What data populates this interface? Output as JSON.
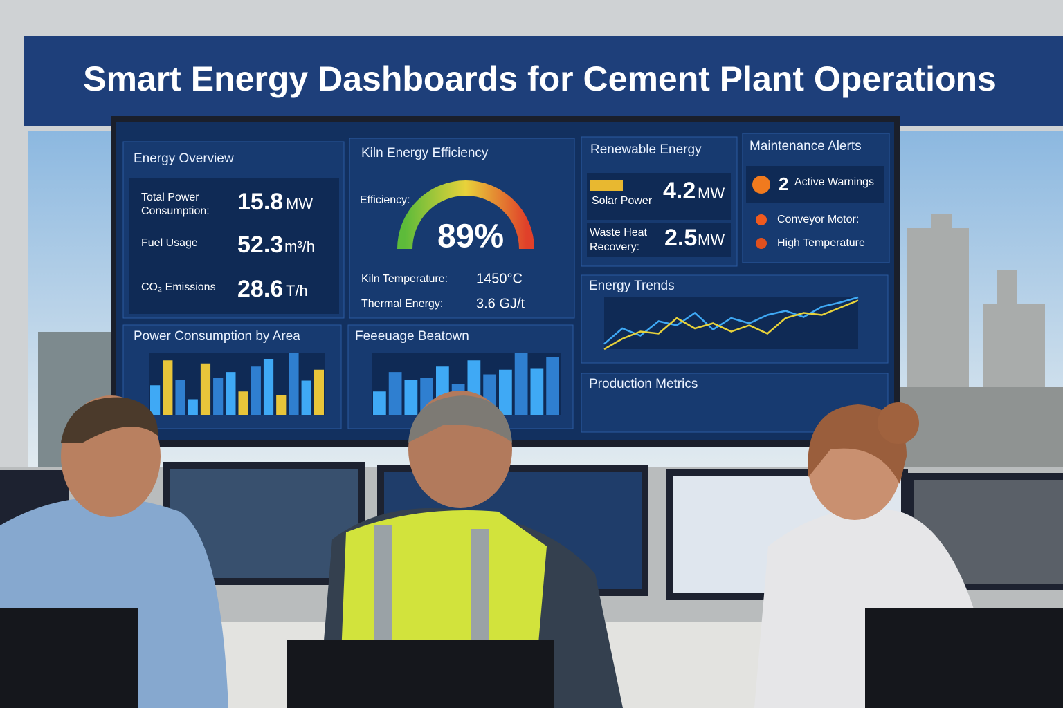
{
  "banner": {
    "title": "Smart Energy Dashboards for Cement Plant Operations"
  },
  "energy_overview": {
    "title": "Energy Overview",
    "rows": [
      {
        "label": "Total Power",
        "label2": "Consumption:",
        "value": "15.8",
        "unit": "MW"
      },
      {
        "label": "Fuel Usage",
        "value": "52.3",
        "unit": "m³/h"
      },
      {
        "label": "CO₂ Emissions",
        "value": "28.6",
        "unit": "T/h"
      }
    ]
  },
  "kiln": {
    "title": "Kiln Energy Efficiency",
    "efficiency_label": "Efficiency:",
    "efficiency": "89%",
    "rows": [
      {
        "label": "Kiln Temperature:",
        "value": "1450°C"
      },
      {
        "label": "Thermal Energy:",
        "value": "3.6 GJ/t"
      }
    ]
  },
  "renewable": {
    "title": "Renewable Energy",
    "rows": [
      {
        "label": "Solar Power",
        "value": "4.2",
        "unit": "MW"
      },
      {
        "label": "Waste Heat",
        "label2": "Recovery:",
        "value": "2.5",
        "unit": "MW"
      }
    ]
  },
  "maintenance": {
    "title": "Maintenance Alerts",
    "count": "2",
    "count_label": "Active Warnings",
    "alerts": [
      "Conveyor Motor:",
      "High Temperature"
    ]
  },
  "power_by_area": {
    "title": "Power Consumption by Area",
    "bars": [
      38,
      70,
      45,
      20,
      66,
      48,
      55,
      30,
      62,
      72,
      25,
      80,
      44,
      58
    ]
  },
  "breakdown": {
    "title": "Feeeuage Beatown",
    "bars": [
      30,
      55,
      45,
      48,
      62,
      40,
      70,
      52,
      58,
      80,
      60,
      74
    ]
  },
  "energy_trends": {
    "title": "Energy Trends",
    "series": [
      {
        "color": "#3fa9f5",
        "values": [
          30,
          45,
          38,
          52,
          48,
          60,
          44,
          55,
          50,
          58,
          62,
          56,
          66,
          70,
          75
        ]
      },
      {
        "color": "#e8d23a",
        "values": [
          25,
          35,
          42,
          40,
          55,
          45,
          50,
          42,
          48,
          40,
          55,
          60,
          58,
          65,
          72
        ]
      }
    ]
  },
  "production": {
    "title": "Production Metrics"
  }
}
